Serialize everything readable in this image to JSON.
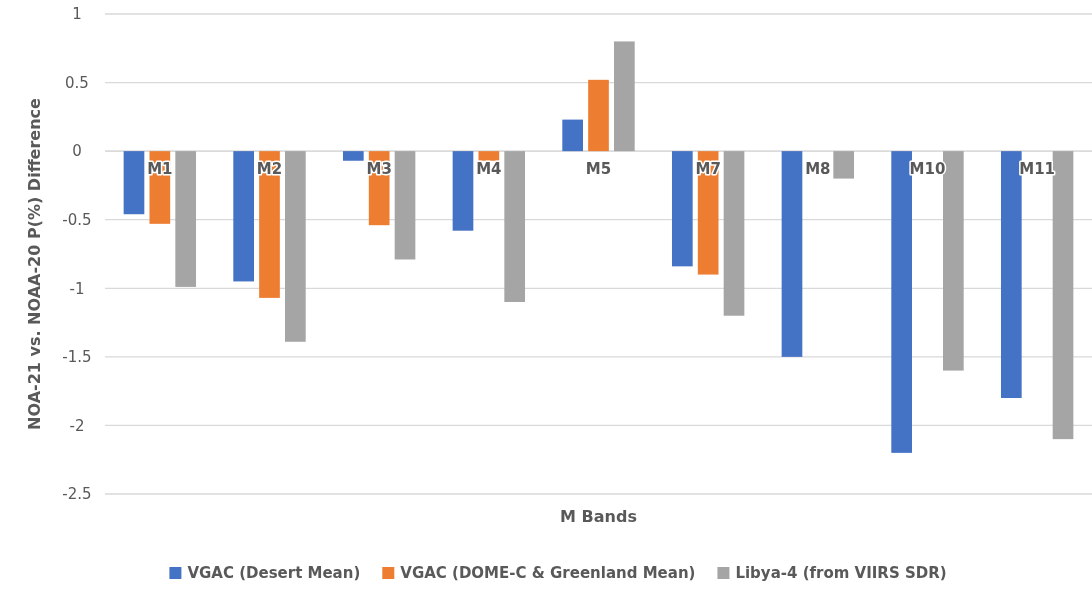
{
  "chart_data": {
    "type": "bar",
    "xlabel": "M Bands",
    "ylabel": "NOA-21 vs. NOAA-20 P(%) Difference",
    "categories": [
      "M1",
      "M2",
      "M3",
      "M4",
      "M5",
      "M7",
      "M8",
      "M10",
      "M11"
    ],
    "series": [
      {
        "name": "VGAC (Desert Mean)",
        "color": "#4472c4",
        "values": [
          -0.46,
          -0.95,
          -0.07,
          -0.58,
          0.23,
          -0.84,
          -1.5,
          -2.2,
          -1.8
        ]
      },
      {
        "name": "VGAC (DOME-C & Greenland Mean)",
        "color": "#ed7d31",
        "values": [
          -0.53,
          -1.07,
          -0.54,
          -0.07,
          0.52,
          -0.9,
          null,
          null,
          null
        ]
      },
      {
        "name": "Libya-4 (from VIIRS SDR)",
        "color": "#a5a5a5",
        "values": [
          -0.99,
          -1.39,
          -0.79,
          -1.1,
          0.8,
          -1.2,
          -0.2,
          -1.6,
          -2.1
        ]
      }
    ],
    "ylim": [
      -2.5,
      1
    ],
    "yticks": [
      -2.5,
      -2,
      -1.5,
      -1,
      -0.5,
      0,
      0.5,
      1
    ],
    "grid": "y",
    "legend": "bottom"
  }
}
